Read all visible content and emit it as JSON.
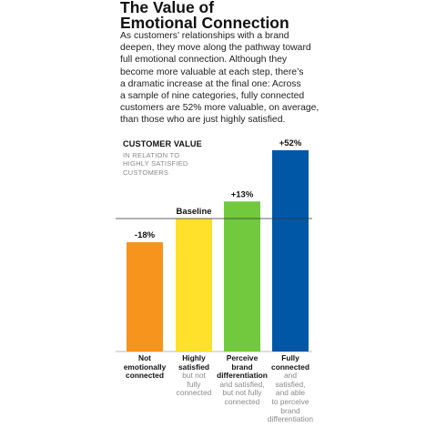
{
  "header": {
    "title_line1": "The Value of",
    "title_line2": "Emotional Connection"
  },
  "intro": {
    "lines": [
      "As customers’ relationships with a brand",
      "deepen, they move along the pathway toward",
      "full emotional connection. Although they",
      "become more valuable at each step, there’s",
      "a dramatic increase at the final one: Across",
      "a sample of nine categories, fully connected",
      "customers are 52% more valuable, on average,",
      "than those who are just highly satisfied."
    ]
  },
  "chart_data": {
    "type": "bar",
    "title": "CUSTOMER VALUE",
    "subtitle_lines": [
      "IN RELATION TO",
      "HIGHLY SATISFIED",
      "CUSTOMERS"
    ],
    "baseline_value": 0,
    "ylim": [
      -45,
      60
    ],
    "categories": [
      {
        "bold": [
          "Not",
          "emotionally",
          "connected"
        ],
        "light": []
      },
      {
        "bold": [
          "Highly",
          "satisfied"
        ],
        "light": [
          "but not",
          "fully",
          "connected"
        ]
      },
      {
        "bold": [
          "Perceive",
          "brand",
          "differentiation"
        ],
        "light": [
          "and satisfied,",
          "but not fully",
          "connected"
        ]
      },
      {
        "bold": [
          "Fully",
          "connected"
        ],
        "light": [
          "and",
          "satisfied,",
          "and able",
          "to perceive",
          "brand",
          "differentiation"
        ]
      }
    ],
    "values": [
      -18,
      0,
      13,
      52
    ],
    "data_labels": [
      "-18%",
      "Baseline",
      "+13%",
      "+52%"
    ],
    "colors": [
      "#f7941d",
      "#ffe02a",
      "#72c93e",
      "#0057a6"
    ]
  }
}
